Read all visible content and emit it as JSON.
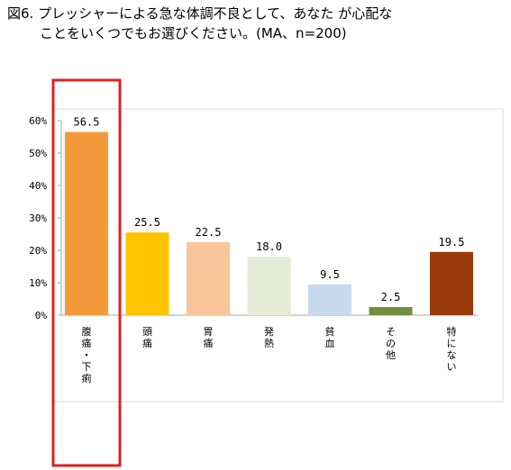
{
  "title": {
    "line1": "図6. プレッシャーによる急な体調不良として、あなた が心配な",
    "line2": "ことをいくつでもお選びください。(MA、n=200)"
  },
  "chart_data": {
    "type": "bar",
    "categories": [
      "腹痛・下痢",
      "頭痛",
      "胃痛",
      "発熱",
      "貧血",
      "その他",
      "特にない"
    ],
    "values": [
      56.5,
      25.5,
      22.5,
      18.0,
      9.5,
      2.5,
      19.5
    ],
    "value_labels": [
      "56.5",
      "25.5",
      "22.5",
      "18.0",
      "9.5",
      "2.5",
      "19.5"
    ],
    "colors": [
      "#F39A3A",
      "#FFC400",
      "#F9C69A",
      "#E6EBD6",
      "#C9D9EE",
      "#6F8F3A",
      "#9A3A0C"
    ],
    "ylim": [
      0,
      60
    ],
    "yticks": [
      0,
      10,
      20,
      30,
      40,
      50,
      60
    ],
    "ytick_labels": [
      "0%",
      "10%",
      "20%",
      "30%",
      "40%",
      "50%",
      "60%"
    ],
    "highlight": {
      "category_index": 0,
      "color": "#E02020"
    },
    "grid": false,
    "legend": "none",
    "title": "",
    "xlabel": "",
    "ylabel": ""
  }
}
